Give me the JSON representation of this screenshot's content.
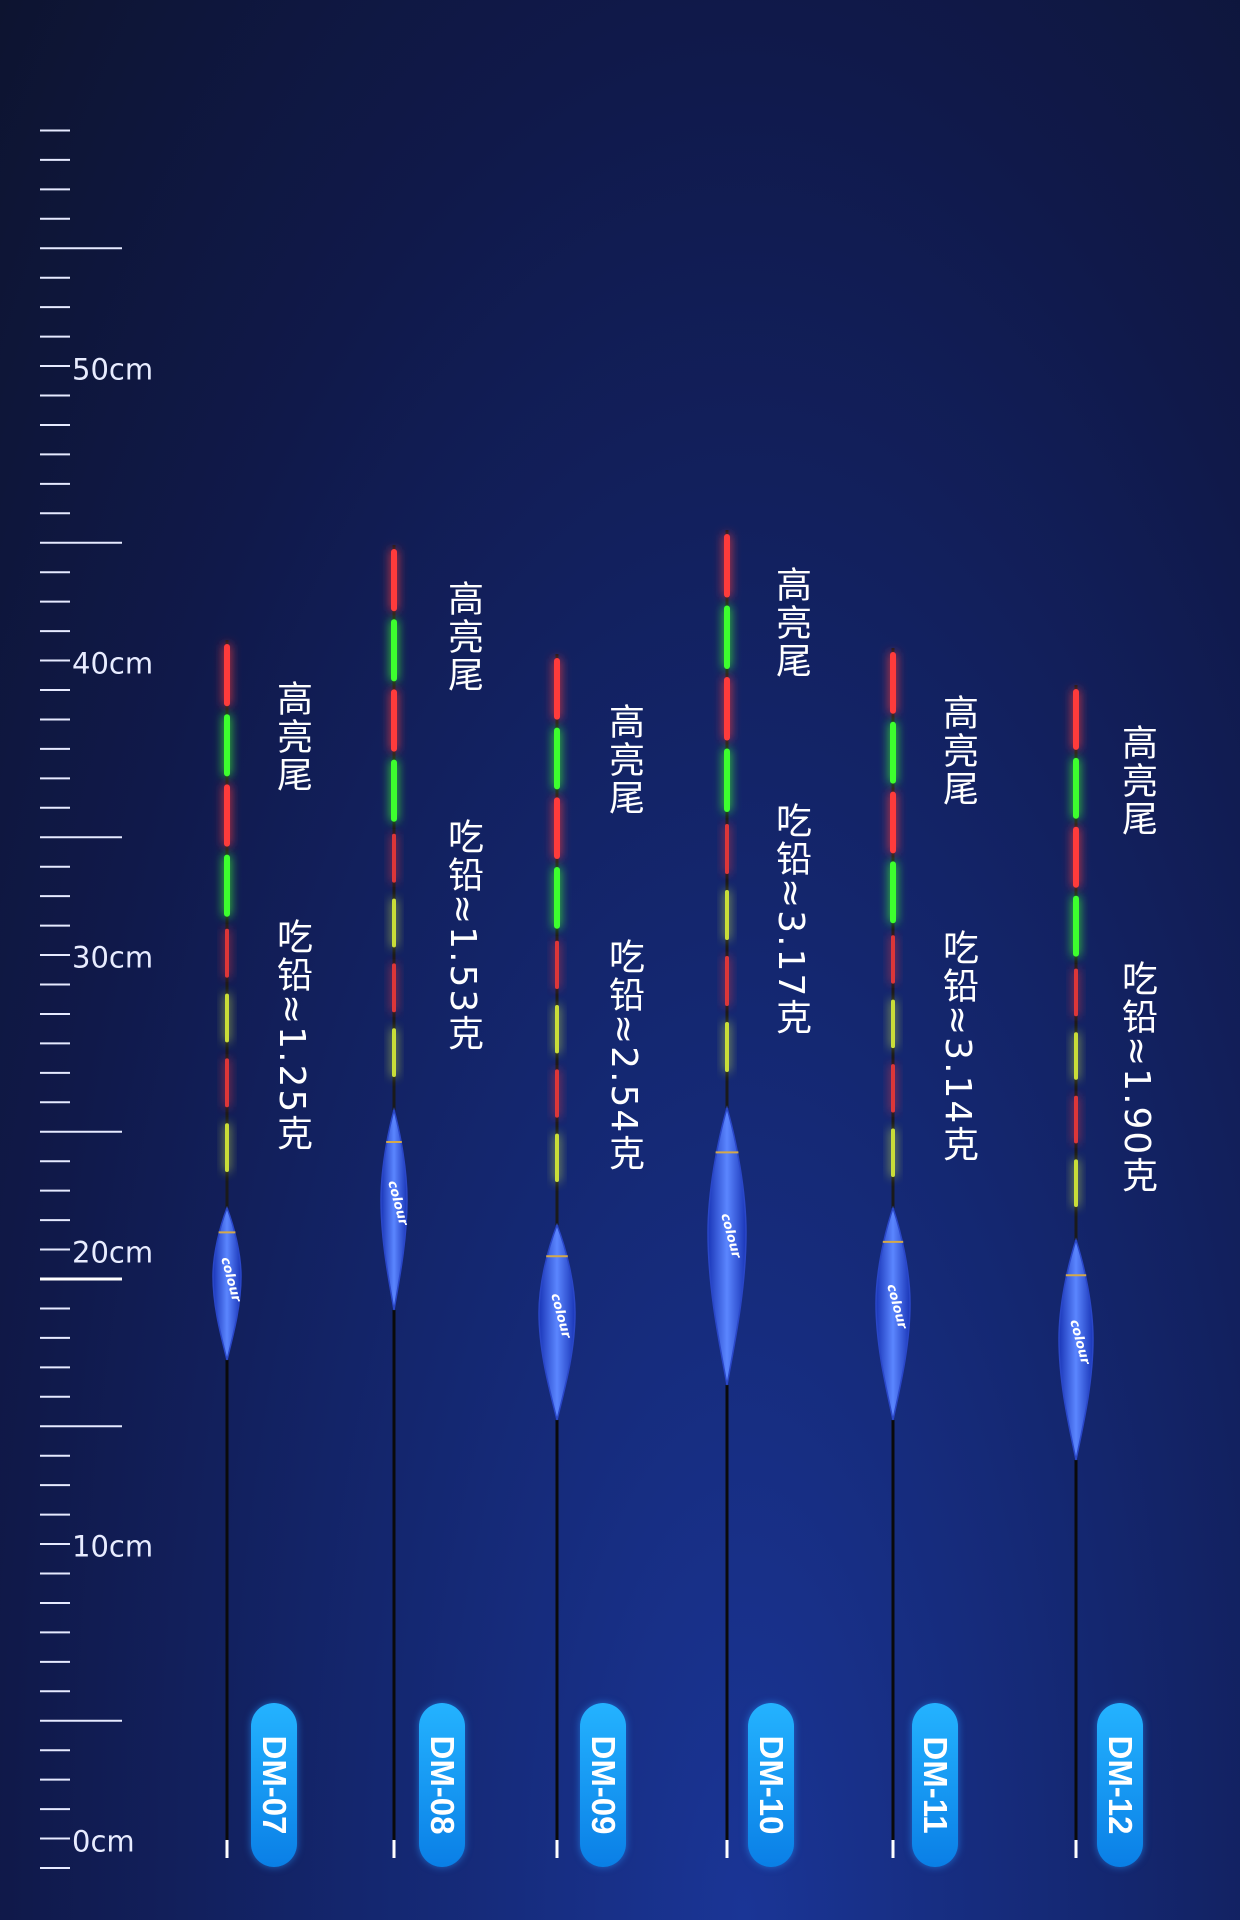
{
  "ruler": {
    "unit_labels": [
      "0cm",
      "10cm",
      "20cm",
      "30cm",
      "40cm",
      "50cm"
    ],
    "max_cm": 59
  },
  "colors": {
    "red_segment": "#ff3b3b",
    "green_segment": "#3dff2e",
    "yellow_segment": "#e8ff3a",
    "body_blue": "#2f57e0",
    "badge_blue": "#0d8cf0",
    "background_dark": "#0d1430",
    "background_blue": "#1a3596"
  },
  "floats": [
    {
      "model": "DM-07",
      "tag": "高亮尾",
      "weight": "吃铅≈1.25克",
      "logo": "colour"
    },
    {
      "model": "DM-08",
      "tag": "高亮尾",
      "weight": "吃铅≈1.53克",
      "logo": "colour"
    },
    {
      "model": "DM-09",
      "tag": "高亮尾",
      "weight": "吃铅≈2.54克",
      "logo": "colour"
    },
    {
      "model": "DM-10",
      "tag": "高亮尾",
      "weight": "吃铅≈3.17克",
      "logo": "colour"
    },
    {
      "model": "DM-11",
      "tag": "高亮尾",
      "weight": "吃铅≈3.14克",
      "logo": "colour"
    },
    {
      "model": "DM-12",
      "tag": "高亮尾",
      "weight": "吃铅≈1.90克",
      "logo": "colour"
    }
  ]
}
